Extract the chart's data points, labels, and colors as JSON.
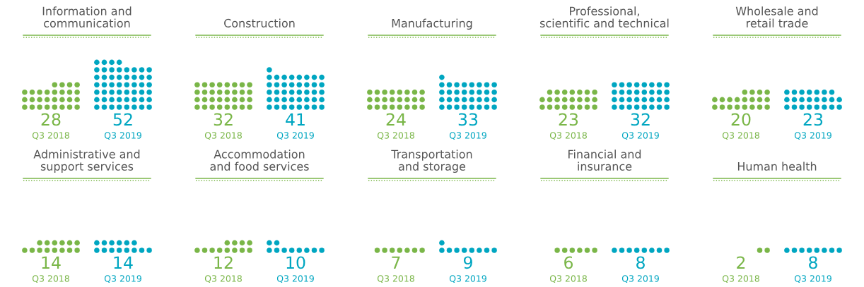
{
  "chart_data": [
    {
      "type": "other",
      "title": "Information and\ncommunication",
      "categories": [
        "Q3 2018",
        "Q3 2019"
      ],
      "values": [
        28,
        52
      ],
      "colors": [
        "#7ab648",
        "#00a6c1"
      ],
      "data_labels": true
    },
    {
      "type": "other",
      "title": "Construction",
      "categories": [
        "Q3 2018",
        "Q3 2019"
      ],
      "values": [
        32,
        41
      ],
      "colors": [
        "#7ab648",
        "#00a6c1"
      ],
      "data_labels": true
    },
    {
      "type": "other",
      "title": "Manufacturing",
      "categories": [
        "Q3 2018",
        "Q3 2019"
      ],
      "values": [
        24,
        33
      ],
      "colors": [
        "#7ab648",
        "#00a6c1"
      ],
      "data_labels": true
    },
    {
      "type": "other",
      "title": "Professional,\nscientific and technical",
      "categories": [
        "Q3 2018",
        "Q3 2019"
      ],
      "values": [
        23,
        32
      ],
      "colors": [
        "#7ab648",
        "#00a6c1"
      ],
      "data_labels": true
    },
    {
      "type": "other",
      "title": "Wholesale and\nretail trade",
      "categories": [
        "Q3 2018",
        "Q3 2019"
      ],
      "values": [
        20,
        23
      ],
      "colors": [
        "#7ab648",
        "#00a6c1"
      ],
      "data_labels": true
    },
    {
      "type": "other",
      "title": "Administrative and\nsupport services",
      "categories": [
        "Q3 2018",
        "Q3 2019"
      ],
      "values": [
        14,
        14
      ],
      "colors": [
        "#7ab648",
        "#00a6c1"
      ],
      "data_labels": true
    },
    {
      "type": "other",
      "title": "Accommodation\nand food services",
      "categories": [
        "Q3 2018",
        "Q3 2019"
      ],
      "values": [
        12,
        10
      ],
      "colors": [
        "#7ab648",
        "#00a6c1"
      ],
      "data_labels": true
    },
    {
      "type": "other",
      "title": "Transportation\nand storage",
      "categories": [
        "Q3 2018",
        "Q3 2019"
      ],
      "values": [
        7,
        9
      ],
      "colors": [
        "#7ab648",
        "#00a6c1"
      ],
      "data_labels": true
    },
    {
      "type": "other",
      "title": "Financial and\ninsurance",
      "categories": [
        "Q3 2018",
        "Q3 2019"
      ],
      "values": [
        6,
        8
      ],
      "colors": [
        "#7ab648",
        "#00a6c1"
      ],
      "data_labels": true
    },
    {
      "type": "other",
      "title": "Human health",
      "categories": [
        "Q3 2018",
        "Q3 2019"
      ],
      "values": [
        2,
        8
      ],
      "colors": [
        "#7ab648",
        "#00a6c1"
      ],
      "data_labels": true
    }
  ]
}
